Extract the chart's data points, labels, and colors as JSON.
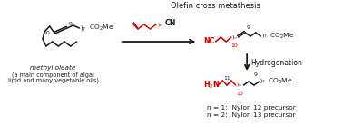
{
  "background_color": "#ffffff",
  "title_text": "Olefin cross metathesis",
  "hydrogenation_text": "Hydrogenation",
  "methyl_oleate_label": "methyl oleate",
  "algal_label1": "(a main component of algal",
  "algal_label2": "lipid and many vegetable oils)",
  "nylon_n1": "n = 1:  Nylon 12 precursor",
  "nylon_n2": "n = 2:  Nylon 13 precursor",
  "black": "#1a1a1a",
  "red": "#cc0000",
  "fig_width": 3.78,
  "fig_height": 1.49,
  "dpi": 100
}
